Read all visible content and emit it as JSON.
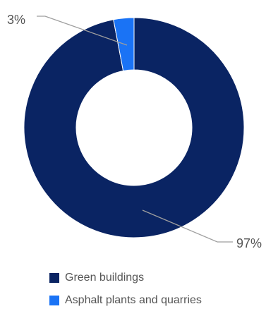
{
  "chart_data": {
    "type": "pie",
    "donut": true,
    "categories": [
      "Green buildings",
      "Asphalt plants and quarries"
    ],
    "values": [
      97,
      3
    ],
    "data_labels": [
      "97%",
      "3%"
    ],
    "colors": [
      "#0a2463",
      "#1a73f5"
    ],
    "legend_placement": "bottom",
    "legend": [
      {
        "label": "Green buildings",
        "color": "#0a2463"
      },
      {
        "label": "Asphalt plants and quarries",
        "color": "#1a73f5"
      }
    ]
  }
}
